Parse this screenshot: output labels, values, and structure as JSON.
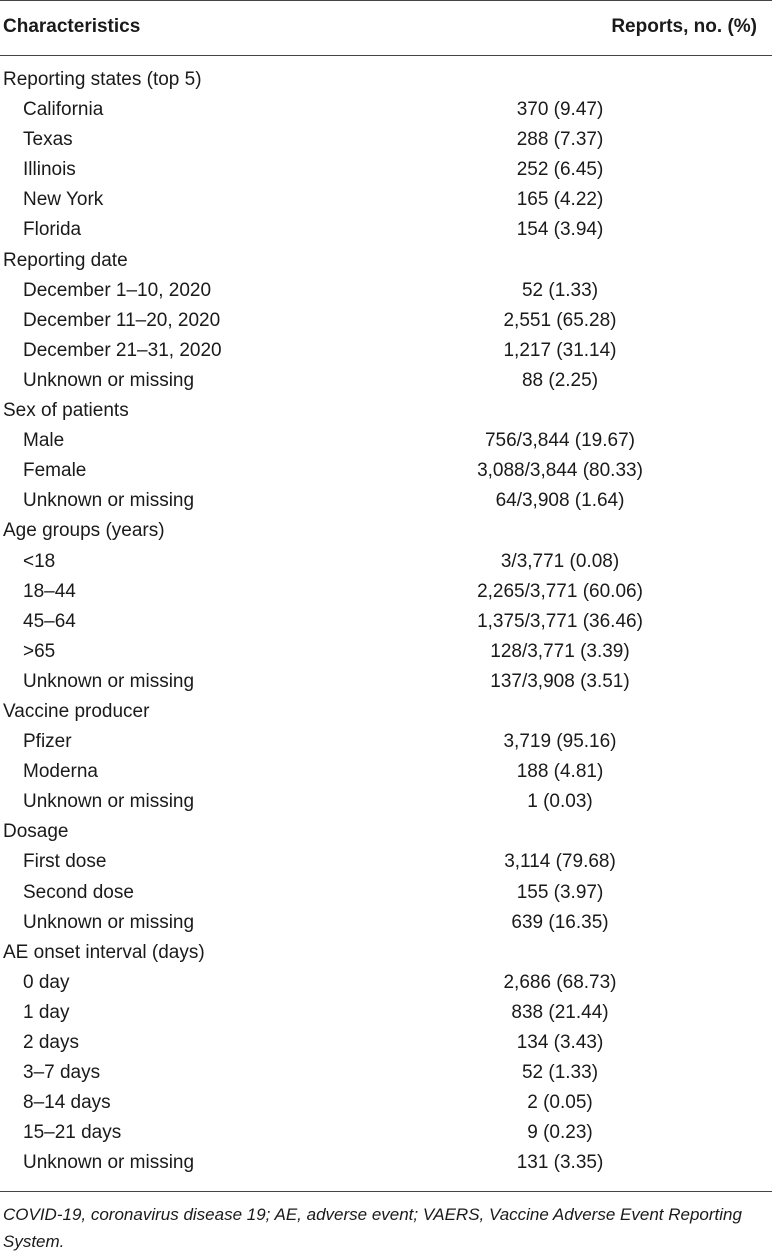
{
  "header": {
    "characteristics": "Characteristics",
    "reports": "Reports, no. (%)"
  },
  "rows": [
    {
      "label": "Reporting states (top 5)",
      "value": "",
      "type": "cat"
    },
    {
      "label": " California",
      "value": "370 (9.47)",
      "type": "sub"
    },
    {
      "label": "Texas",
      "value": "288 (7.37)",
      "type": "sub"
    },
    {
      "label": " Illinois",
      "value": "252 (6.45)",
      "type": "sub"
    },
    {
      "label": "New York",
      "value": "165 (4.22)",
      "type": "sub"
    },
    {
      "label": " Florida",
      "value": "154 (3.94)",
      "type": "sub"
    },
    {
      "label": "Reporting date",
      "value": "",
      "type": "cat"
    },
    {
      "label": "December 1–10, 2020",
      "value": "52 (1.33)",
      "type": "sub"
    },
    {
      "label": "December 11–20, 2020",
      "value": "2,551 (65.28)",
      "type": "sub"
    },
    {
      "label": "December 21–31, 2020",
      "value": "1,217 (31.14)",
      "type": "sub"
    },
    {
      "label": "Unknown or missing",
      "value": "88 (2.25)",
      "type": "sub"
    },
    {
      "label": "Sex of patients",
      "value": "",
      "type": "cat"
    },
    {
      "label": "Male",
      "value": "756/3,844 (19.67)",
      "type": "sub"
    },
    {
      "label": "Female",
      "value": "3,088/3,844 (80.33)",
      "type": "sub"
    },
    {
      "label": "Unknown or missing",
      "value": "64/3,908 (1.64)",
      "type": "sub"
    },
    {
      "label": "Age groups (years)",
      "value": "",
      "type": "cat"
    },
    {
      "label": "<18",
      "value": "3/3,771 (0.08)",
      "type": "sub"
    },
    {
      "label": "18–44",
      "value": "2,265/3,771 (60.06)",
      "type": "sub"
    },
    {
      "label": "45–64",
      "value": "1,375/3,771 (36.46)",
      "type": "sub"
    },
    {
      "label": ">65",
      "value": "128/3,771 (3.39)",
      "type": "sub"
    },
    {
      "label": "Unknown or missing",
      "value": "137/3,908 (3.51)",
      "type": "sub"
    },
    {
      "label": "Vaccine producer",
      "value": "",
      "type": "cat"
    },
    {
      "label": " Pfizer",
      "value": "3,719 (95.16)",
      "type": "sub"
    },
    {
      "label": "Moderna",
      "value": "188 (4.81)",
      "type": "sub"
    },
    {
      "label": "Unknown or missing",
      "value": "1 (0.03)",
      "type": "sub"
    },
    {
      "label": "Dosage",
      "value": "",
      "type": "cat"
    },
    {
      "label": " First dose",
      "value": "3,114 (79.68)",
      "type": "sub"
    },
    {
      "label": " Second dose",
      "value": "155 (3.97)",
      "type": "sub"
    },
    {
      "label": "Unknown or missing",
      "value": "639 (16.35)",
      "type": "sub"
    },
    {
      "label": "AE onset interval (days)",
      "value": "",
      "type": "cat"
    },
    {
      "label": " 0 day",
      "value": "2,686 (68.73)",
      "type": "sub"
    },
    {
      "label": " 1 day",
      "value": "838 (21.44)",
      "type": "sub"
    },
    {
      "label": " 2 days",
      "value": "134 (3.43)",
      "type": "sub"
    },
    {
      "label": " 3–7 days",
      "value": "52 (1.33)",
      "type": "sub"
    },
    {
      "label": " 8–14 days",
      "value": "2 (0.05)",
      "type": "sub"
    },
    {
      "label": " 15–21 days",
      "value": "9 (0.23)",
      "type": "sub"
    },
    {
      "label": " Unknown or missing",
      "value": "131 (3.35)",
      "type": "sub"
    }
  ],
  "footnote": "COVID-19, coronavirus disease 19; AE, adverse event; VAERS, Vaccine Adverse Event Reporting System."
}
